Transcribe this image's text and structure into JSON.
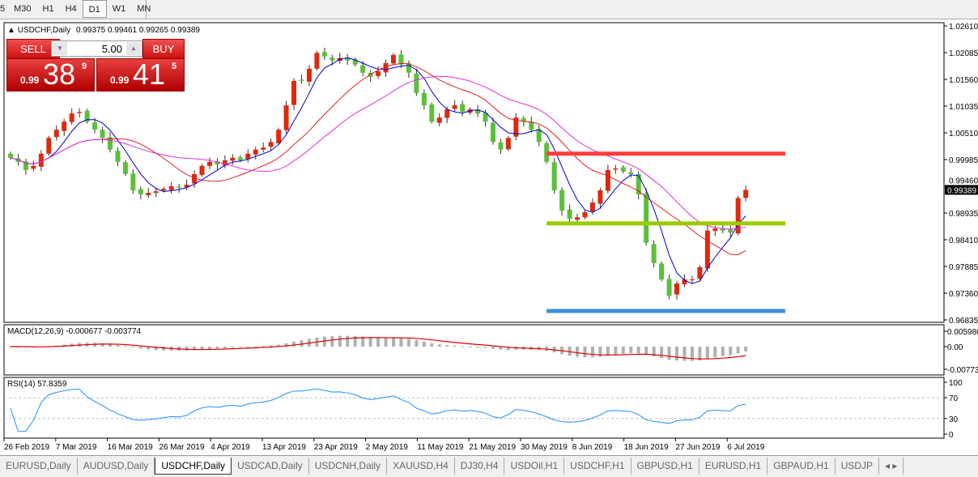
{
  "timeframes": [
    "5",
    "M30",
    "H1",
    "H4",
    "D1",
    "W1",
    "MN"
  ],
  "active_timeframe": "D1",
  "header": {
    "symbol": "USDCHF,Daily",
    "ohlc": "0.99375 0.99461 0.99265 0.99389"
  },
  "trade_panel": {
    "sell_label": "SELL",
    "buy_label": "BUY",
    "lot": "5.00",
    "sell_small": "0.99",
    "sell_main": "38",
    "sell_pip": "9",
    "buy_small": "0.99",
    "buy_main": "41",
    "buy_pip": "5"
  },
  "price_axis": [
    "1.02610",
    "1.02085",
    "1.01560",
    "1.01035",
    "1.00510",
    "0.99985",
    "0.99460",
    "0.98935",
    "0.98410",
    "0.97885",
    "0.97360",
    "0.96835"
  ],
  "current_price": "0.99389",
  "macd": {
    "label": "MACD(12,26,9) -0.000677 -0.003774",
    "axis": [
      "0.005986",
      "0.00",
      "-0.00773"
    ]
  },
  "rsi": {
    "label": "RSI(14) 57.8359",
    "axis": [
      "100",
      "70",
      "30",
      "0"
    ]
  },
  "dates": [
    "26 Feb 2019",
    "7 Mar 2019",
    "16 Mar 2019",
    "26 Mar 2019",
    "4 Apr 2019",
    "13 Apr 2019",
    "23 Apr 2019",
    "2 May 2019",
    "11 May 2019",
    "21 May 2019",
    "30 May 2019",
    "8 Jun 2019",
    "18 Jun 2019",
    "27 Jun 2019",
    "6 Jul 2019"
  ],
  "tabs": [
    "EURUSD,Daily",
    "AUDUSD,Daily",
    "USDCHF,Daily",
    "USDCAD,Daily",
    "USDCNH,Daily",
    "XAUUSD,H4",
    "DJ30,H4",
    "USDOil,H1",
    "USDCHF,H1",
    "GBPUSD,H1",
    "EURUSD,H1",
    "GBPAUD,H1",
    "USDJP"
  ],
  "active_tab": "USDCHF,Daily",
  "colors": {
    "bull": "#dc2a0e",
    "bear": "#5cbf3a",
    "ma_fast": "#0000cc",
    "ma_mid": "#e02020",
    "ma_slow": "#e030e0",
    "resistance": "#ff3c3c",
    "support_mid": "#99cc00",
    "support_low": "#3c8fdc"
  },
  "chart_data": {
    "type": "candlestick",
    "ylim": [
      0.96835,
      1.0261
    ],
    "closes": [
      1.0002,
      0.9994,
      0.9978,
      0.9986,
      1.001,
      1.0041,
      1.0057,
      1.0073,
      1.0089,
      1.0092,
      1.0073,
      1.0057,
      1.0041,
      1.0018,
      0.9994,
      0.997,
      0.9938,
      0.993,
      0.9933,
      0.9936,
      0.9941,
      0.9946,
      0.9943,
      0.9949,
      0.997,
      0.9986,
      0.9994,
      0.9989,
      0.9997,
      1.0002,
      0.9997,
      1.001,
      1.0018,
      1.0022,
      1.0033,
      1.0057,
      1.0105,
      1.0153,
      1.0153,
      1.0177,
      1.0208,
      1.0201,
      1.0193,
      1.0198,
      1.0193,
      1.0185,
      1.0169,
      1.0161,
      1.0172,
      1.0188,
      1.0204,
      1.0185,
      1.0169,
      1.0129,
      1.0105,
      1.0073,
      1.0081,
      1.0097,
      1.0105,
      1.0092,
      1.0097,
      1.0089,
      1.0073,
      1.0033,
      1.0018,
      1.0041,
      1.0081,
      1.0073,
      1.0057,
      1.0033,
      0.9994,
      0.9938,
      0.9898,
      0.9882,
      0.9885,
      0.9895,
      0.9914,
      0.9938,
      0.9978,
      0.9981,
      0.9975,
      0.997,
      0.993,
      0.9835,
      0.9795,
      0.9763,
      0.9731,
      0.9755,
      0.9763,
      0.9763,
      0.9787,
      0.9859,
      0.9863,
      0.9859,
      0.9855,
      0.9923,
      0.99389
    ],
    "horizontal_lines": [
      {
        "price": 1.001,
        "color": "#ff3c3c"
      },
      {
        "price": 0.9873,
        "color": "#99cc00"
      },
      {
        "price": 0.9701,
        "color": "#3c8fdc"
      }
    ]
  }
}
